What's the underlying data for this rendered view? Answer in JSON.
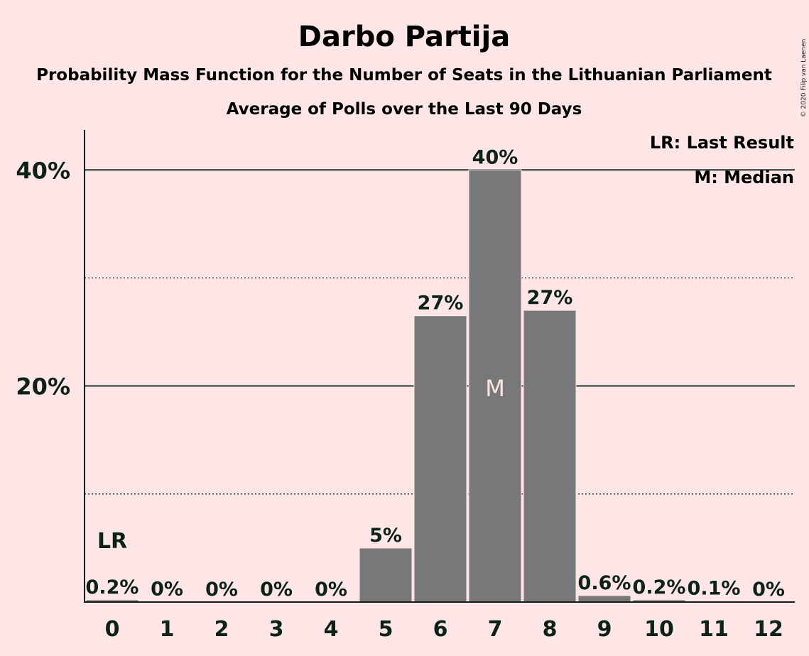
{
  "chart_data": {
    "type": "bar",
    "title": "Darbo Partija",
    "subtitle1": "Probability Mass Function for the Number of Seats in the Lithuanian Parliament",
    "subtitle2": "Average of Polls over the Last 90 Days",
    "categories": [
      "0",
      "1",
      "2",
      "3",
      "4",
      "5",
      "6",
      "7",
      "8",
      "9",
      "10",
      "11",
      "12"
    ],
    "values": [
      0.2,
      0.02,
      0.0,
      0.0,
      0.0,
      5.0,
      26.5,
      40.0,
      27.0,
      0.6,
      0.2,
      0.1,
      0.0
    ],
    "labels": [
      "0.2%",
      "0%",
      "0%",
      "0%",
      "0%",
      "5%",
      "27%",
      "40%",
      "27%",
      "0.6%",
      "0.2%",
      "0.1%",
      "0%"
    ],
    "ylim": [
      0,
      43.7
    ],
    "yticks": [
      {
        "value": 20,
        "label": "20%"
      },
      {
        "value": 40,
        "label": "40%"
      }
    ],
    "minor_gridlines": [
      10,
      30
    ],
    "last_result_index": 0,
    "last_result_marker": "LR",
    "median_index": 7,
    "median_marker": "M",
    "legend": [
      "LR: Last Result",
      "M: Median"
    ],
    "legend_position": "top-right",
    "copyright": "© 2020 Filip van Laenen",
    "colors": {
      "background": "#ffe6e6",
      "bar": "#787878",
      "text": "#0c2217",
      "median_text": "#ffe6e6"
    }
  }
}
